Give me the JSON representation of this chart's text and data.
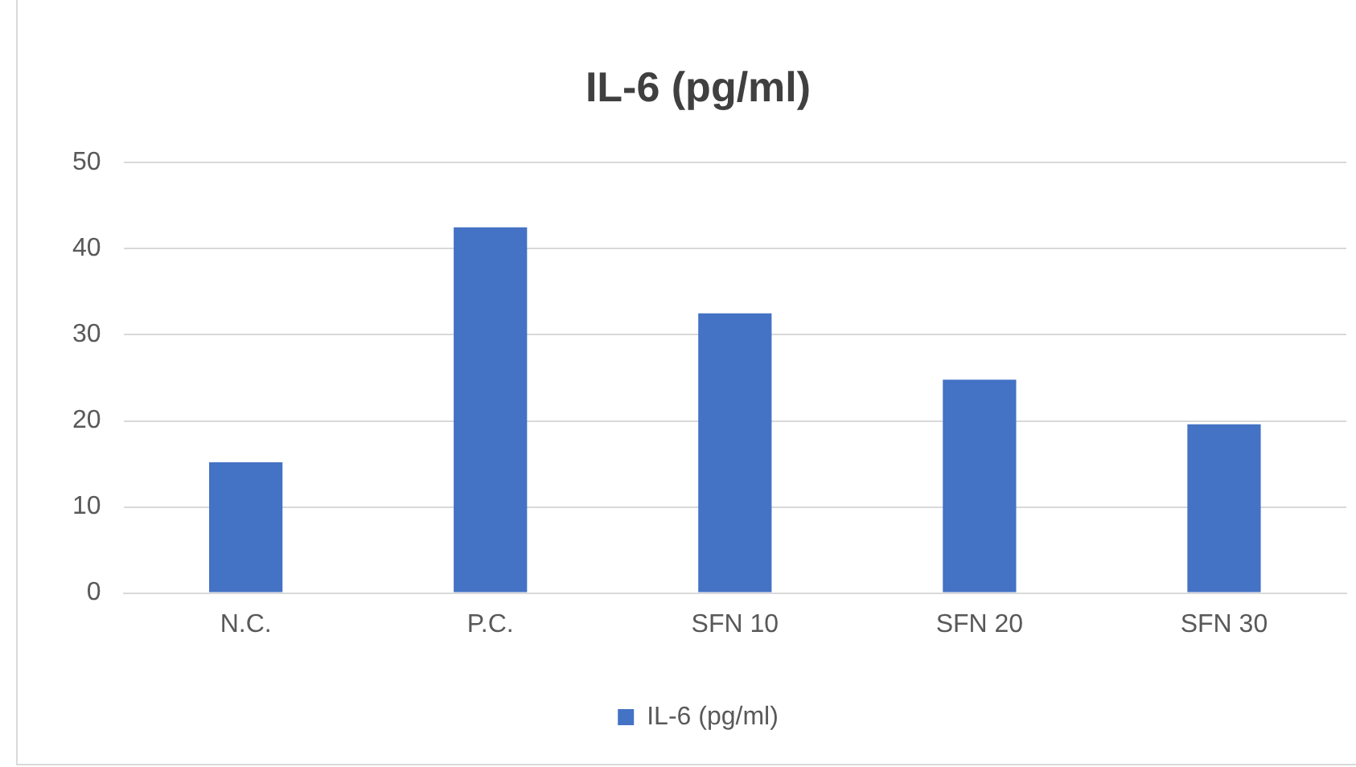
{
  "chart_data": {
    "type": "bar",
    "title": "IL-6 (pg/ml)",
    "categories": [
      "N.C.",
      "P.C.",
      "SFN 10",
      "SFN 20",
      "SFN 30"
    ],
    "series": [
      {
        "name": "IL-6 (pg/ml)",
        "color": "#4472c4",
        "values": [
          15.2,
          42.5,
          32.5,
          24.8,
          19.6
        ]
      }
    ],
    "ylim": [
      0,
      50
    ],
    "yticks": [
      0,
      10,
      20,
      30,
      40,
      50
    ],
    "grid": "y",
    "legend": "bottom"
  }
}
